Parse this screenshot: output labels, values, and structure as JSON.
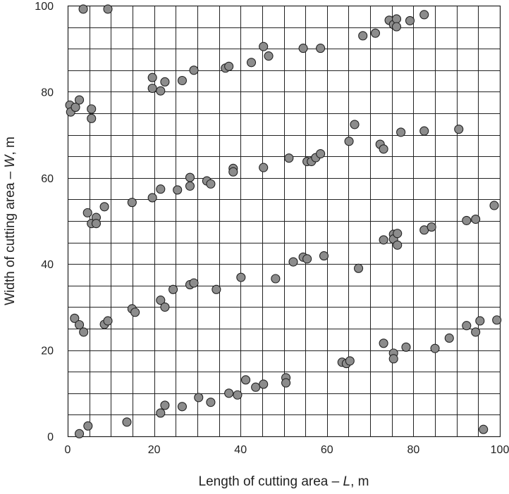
{
  "chart_data": {
    "type": "scatter",
    "title": "",
    "xlabel": {
      "prefix": "Length of cutting area – ",
      "var": "L",
      "suffix": ", m"
    },
    "ylabel": {
      "prefix": "Width of cutting area – ",
      "var": "W",
      "suffix": ", m"
    },
    "xlim": [
      0,
      100
    ],
    "ylim": [
      0,
      100
    ],
    "xticks": [
      0,
      20,
      40,
      60,
      80,
      100
    ],
    "yticks": [
      0,
      20,
      40,
      60,
      80,
      100
    ],
    "minor_grid_step": 5,
    "grid": true,
    "legend": "none",
    "marker_color": "#8c8c8c",
    "series": [
      {
        "points": [
          [
            2.7,
            0.6
          ],
          [
            4.7,
            2.4
          ],
          [
            13.7,
            3.3
          ],
          [
            21.5,
            5.4
          ],
          [
            22.5,
            7.2
          ],
          [
            26.5,
            6.9
          ],
          [
            30.3,
            9.0
          ],
          [
            33.1,
            7.9
          ],
          [
            37.3,
            10.0
          ],
          [
            39.3,
            9.6
          ],
          [
            41.2,
            13.1
          ],
          [
            43.5,
            11.4
          ],
          [
            45.3,
            12.1
          ],
          [
            50.5,
            13.6
          ],
          [
            50.5,
            12.4
          ],
          [
            1.6,
            27.4
          ],
          [
            2.7,
            25.9
          ],
          [
            3.7,
            24.2
          ],
          [
            8.5,
            26.0
          ],
          [
            9.3,
            26.8
          ],
          [
            14.9,
            29.6
          ],
          [
            15.6,
            28.8
          ],
          [
            21.5,
            31.6
          ],
          [
            22.5,
            30.0
          ],
          [
            24.4,
            34.1
          ],
          [
            28.3,
            35.2
          ],
          [
            29.2,
            35.6
          ],
          [
            34.4,
            34.1
          ],
          [
            40.1,
            36.9
          ],
          [
            48.1,
            36.6
          ],
          [
            52.2,
            40.5
          ],
          [
            54.5,
            41.6
          ],
          [
            55.4,
            41.2
          ],
          [
            59.3,
            41.9
          ],
          [
            63.5,
            17.2
          ],
          [
            64.5,
            16.9
          ],
          [
            65.3,
            17.5
          ],
          [
            67.3,
            39.0
          ],
          [
            73.1,
            21.6
          ],
          [
            75.4,
            19.3
          ],
          [
            75.4,
            18.0
          ],
          [
            78.3,
            20.7
          ],
          [
            85.0,
            20.4
          ],
          [
            88.3,
            22.8
          ],
          [
            92.3,
            25.7
          ],
          [
            94.4,
            24.2
          ],
          [
            95.4,
            26.8
          ],
          [
            99.3,
            27.0
          ],
          [
            96.2,
            1.6
          ],
          [
            73.1,
            45.6
          ],
          [
            75.4,
            46.9
          ],
          [
            75.4,
            45.8
          ],
          [
            76.3,
            47.1
          ],
          [
            76.3,
            44.4
          ],
          [
            82.5,
            47.9
          ],
          [
            84.2,
            48.6
          ],
          [
            92.3,
            50.1
          ],
          [
            94.4,
            50.4
          ],
          [
            98.7,
            53.6
          ],
          [
            4.6,
            51.9
          ],
          [
            5.5,
            49.4
          ],
          [
            6.6,
            50.8
          ],
          [
            6.6,
            49.4
          ],
          [
            8.5,
            53.3
          ],
          [
            14.9,
            54.3
          ],
          [
            19.6,
            55.4
          ],
          [
            21.5,
            57.4
          ],
          [
            25.4,
            57.2
          ],
          [
            28.3,
            58.1
          ],
          [
            28.3,
            60.1
          ],
          [
            32.2,
            59.3
          ],
          [
            33.1,
            58.6
          ],
          [
            38.3,
            62.2
          ],
          [
            38.3,
            61.4
          ],
          [
            45.3,
            62.4
          ],
          [
            51.2,
            64.6
          ],
          [
            55.4,
            63.8
          ],
          [
            56.4,
            63.8
          ],
          [
            57.4,
            64.7
          ],
          [
            58.5,
            65.6
          ],
          [
            65.1,
            68.5
          ],
          [
            66.4,
            72.4
          ],
          [
            72.3,
            67.8
          ],
          [
            73.1,
            66.7
          ],
          [
            77.1,
            70.6
          ],
          [
            82.5,
            70.9
          ],
          [
            90.5,
            71.3
          ],
          [
            0.5,
            76.9
          ],
          [
            0.7,
            75.3
          ],
          [
            1.8,
            76.4
          ],
          [
            2.7,
            78.1
          ],
          [
            5.5,
            76.0
          ],
          [
            5.5,
            73.8
          ],
          [
            19.6,
            83.3
          ],
          [
            19.6,
            80.8
          ],
          [
            21.5,
            80.2
          ],
          [
            22.5,
            82.3
          ],
          [
            26.5,
            82.6
          ],
          [
            29.2,
            85.0
          ],
          [
            36.5,
            85.5
          ],
          [
            37.3,
            85.9
          ],
          [
            42.5,
            86.8
          ],
          [
            45.3,
            90.5
          ],
          [
            46.5,
            88.3
          ],
          [
            54.5,
            90.1
          ],
          [
            58.5,
            90.1
          ],
          [
            68.3,
            93.0
          ],
          [
            71.2,
            93.6
          ],
          [
            74.4,
            96.6
          ],
          [
            75.4,
            95.6
          ],
          [
            76.1,
            96.9
          ],
          [
            76.1,
            95.1
          ],
          [
            79.2,
            96.5
          ],
          [
            82.5,
            97.9
          ],
          [
            3.6,
            99.2
          ],
          [
            9.3,
            99.2
          ]
        ]
      }
    ]
  }
}
